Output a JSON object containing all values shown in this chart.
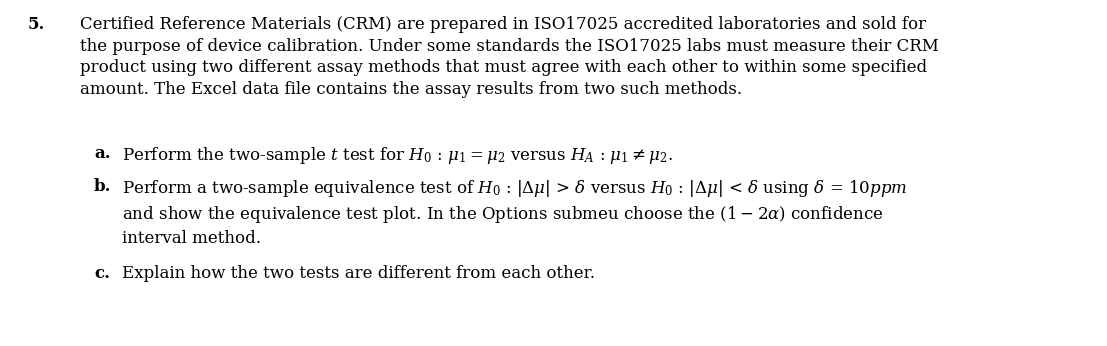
{
  "background_color": "#ffffff",
  "fig_width": 11.07,
  "fig_height": 3.46,
  "dpi": 100,
  "text_color": "#000000",
  "font_family": "DejaVu Serif",
  "fontsize": 12.0,
  "number_label": "5.",
  "paragraph_text": "Certified Reference Materials (CRM) are prepared in ISO17025 accredited laboratories and sold for\nthe purpose of device calibration. Under some standards the ISO17025 labs must measure their CRM\nproduct using two different assay methods that must agree with each other to within some specified\namount. The Excel data file contains the assay results from two such methods.",
  "item_a_text": "Perform the two-sample $t$ test for $H_0$ : $\\mu_1 = \\mu_2$ versus $H_A$ : $\\mu_1 \\neq \\mu_2$.",
  "item_b_line1": "Perform a two-sample equivalence test of $H_0$ : $|\\Delta\\mu|$ > $\\delta$ versus $H_0$ : $|\\Delta\\mu|$ < $\\delta$ using $\\delta$ = $10ppm$",
  "item_b_line2": "and show the equivalence test plot. In the Options submeu choose the $(1 - 2\\alpha)$ confidence",
  "item_b_line3": "interval method.",
  "item_c_text": "Explain how the two tests are different from each other.",
  "linespacing": 1.35
}
